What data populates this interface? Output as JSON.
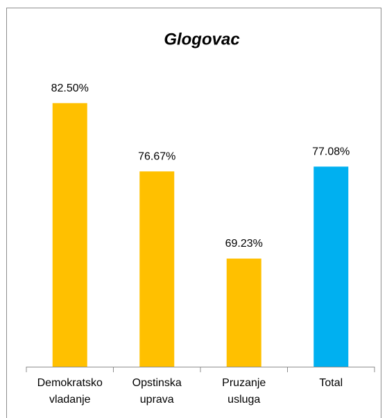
{
  "chart_data": {
    "type": "bar",
    "title": "Glogovac",
    "categories": [
      "Demokratsko vladanje",
      "Opstinska uprava",
      "Pruzanje usluga",
      "Total"
    ],
    "values": [
      82.5,
      76.67,
      69.23,
      77.08
    ],
    "value_labels": [
      "82.50%",
      "76.67%",
      "69.23%",
      "77.08%"
    ],
    "colors": [
      "#FFC000",
      "#FFC000",
      "#FFC000",
      "#00B0F0"
    ],
    "ylim": [
      60,
      90
    ],
    "grid": false
  }
}
